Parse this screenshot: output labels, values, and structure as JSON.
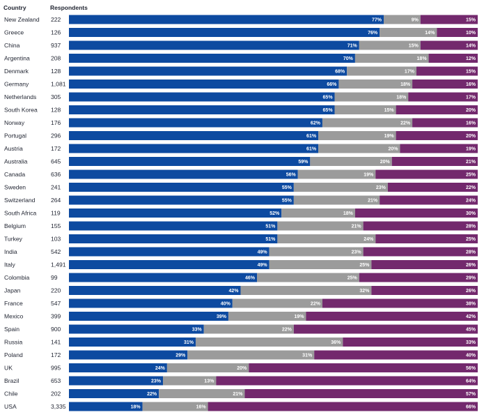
{
  "chart_data": {
    "type": "bar",
    "stacked": true,
    "orientation": "horizontal",
    "columns": [
      "Country",
      "Respondents"
    ],
    "colors": [
      "#0d4aa0",
      "#9b9b9b",
      "#73296d"
    ],
    "rows": [
      {
        "country": "New Zealand",
        "respondents": "222",
        "values": [
          77,
          9,
          15
        ]
      },
      {
        "country": "Greece",
        "respondents": "126",
        "values": [
          76,
          14,
          10
        ]
      },
      {
        "country": "China",
        "respondents": "937",
        "values": [
          71,
          15,
          14
        ]
      },
      {
        "country": "Argentina",
        "respondents": "208",
        "values": [
          70,
          18,
          12
        ]
      },
      {
        "country": "Denmark",
        "respondents": "128",
        "values": [
          68,
          17,
          15
        ]
      },
      {
        "country": "Germany",
        "respondents": "1,081",
        "values": [
          66,
          18,
          16
        ]
      },
      {
        "country": "Netherlands",
        "respondents": "305",
        "values": [
          65,
          18,
          17
        ]
      },
      {
        "country": "South Korea",
        "respondents": "128",
        "values": [
          65,
          15,
          20
        ]
      },
      {
        "country": "Norway",
        "respondents": "176",
        "values": [
          62,
          22,
          16
        ]
      },
      {
        "country": "Portugal",
        "respondents": "296",
        "values": [
          61,
          19,
          20
        ]
      },
      {
        "country": "Austria",
        "respondents": "172",
        "values": [
          61,
          20,
          19
        ]
      },
      {
        "country": "Australia",
        "respondents": "645",
        "values": [
          59,
          20,
          21
        ]
      },
      {
        "country": "Canada",
        "respondents": "636",
        "values": [
          56,
          19,
          25
        ]
      },
      {
        "country": "Sweden",
        "respondents": "241",
        "values": [
          55,
          23,
          22
        ]
      },
      {
        "country": "Switzerland",
        "respondents": "264",
        "values": [
          55,
          21,
          24
        ]
      },
      {
        "country": "South Africa",
        "respondents": "119",
        "values": [
          52,
          18,
          30
        ]
      },
      {
        "country": "Belgium",
        "respondents": "155",
        "values": [
          51,
          21,
          28
        ]
      },
      {
        "country": "Turkey",
        "respondents": "103",
        "values": [
          51,
          24,
          25
        ]
      },
      {
        "country": "India",
        "respondents": "542",
        "values": [
          49,
          23,
          28
        ]
      },
      {
        "country": "Italy",
        "respondents": "1,491",
        "values": [
          49,
          25,
          26
        ]
      },
      {
        "country": "Colombia",
        "respondents": "99",
        "values": [
          46,
          25,
          29
        ]
      },
      {
        "country": "Japan",
        "respondents": "220",
        "values": [
          42,
          32,
          26
        ]
      },
      {
        "country": "France",
        "respondents": "547",
        "values": [
          40,
          22,
          38
        ]
      },
      {
        "country": "Mexico",
        "respondents": "399",
        "values": [
          39,
          19,
          42
        ]
      },
      {
        "country": "Spain",
        "respondents": "900",
        "values": [
          33,
          22,
          45
        ]
      },
      {
        "country": "Russia",
        "respondents": "141",
        "values": [
          31,
          36,
          33
        ]
      },
      {
        "country": "Poland",
        "respondents": "172",
        "values": [
          29,
          31,
          40
        ]
      },
      {
        "country": "UK",
        "respondents": "995",
        "values": [
          24,
          20,
          56
        ]
      },
      {
        "country": "Brazil",
        "respondents": "653",
        "values": [
          23,
          13,
          64
        ]
      },
      {
        "country": "Chile",
        "respondents": "202",
        "values": [
          22,
          21,
          57
        ]
      },
      {
        "country": "USA",
        "respondents": "3,335",
        "values": [
          18,
          16,
          66
        ]
      }
    ]
  }
}
